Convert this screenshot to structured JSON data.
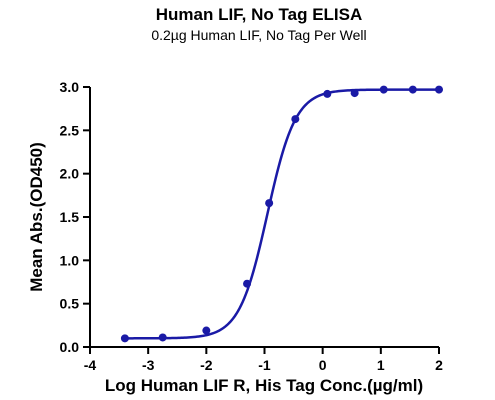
{
  "chart_data": {
    "type": "scatter",
    "title": "Human LIF, No Tag ELISA",
    "subtitle": "0.2µg Human LIF, No Tag Per Well",
    "xlabel": "Log Human LIF R, His Tag Conc.(µg/ml)",
    "ylabel": "Mean Abs.(OD450)",
    "xlim": [
      -4,
      2
    ],
    "ylim": [
      0,
      3.0
    ],
    "xticks": [
      -4,
      -3,
      -2,
      -1,
      0,
      1,
      2
    ],
    "xtick_labels": [
      "-4",
      "-3",
      "-2",
      "-1",
      "0",
      "1",
      "2"
    ],
    "yticks": [
      0.0,
      0.5,
      1.0,
      1.5,
      2.0,
      2.5,
      3.0
    ],
    "ytick_labels": [
      "0.0",
      "0.5",
      "1.0",
      "1.5",
      "2.0",
      "2.5",
      "3.0"
    ],
    "grid": false,
    "color": "#1a1aa6",
    "points": {
      "x": [
        -3.4,
        -2.75,
        -2.0,
        -1.3,
        -0.92,
        -0.47,
        0.08,
        0.55,
        1.05,
        1.55,
        2.0
      ],
      "y": [
        0.1,
        0.11,
        0.19,
        0.73,
        1.66,
        2.63,
        2.92,
        2.93,
        2.97,
        2.97,
        2.97
      ]
    },
    "fit_curve": {
      "model": "4PL",
      "bottom": 0.1,
      "top": 2.97,
      "logEC50": -0.95,
      "hill_slope": 1.8
    }
  }
}
